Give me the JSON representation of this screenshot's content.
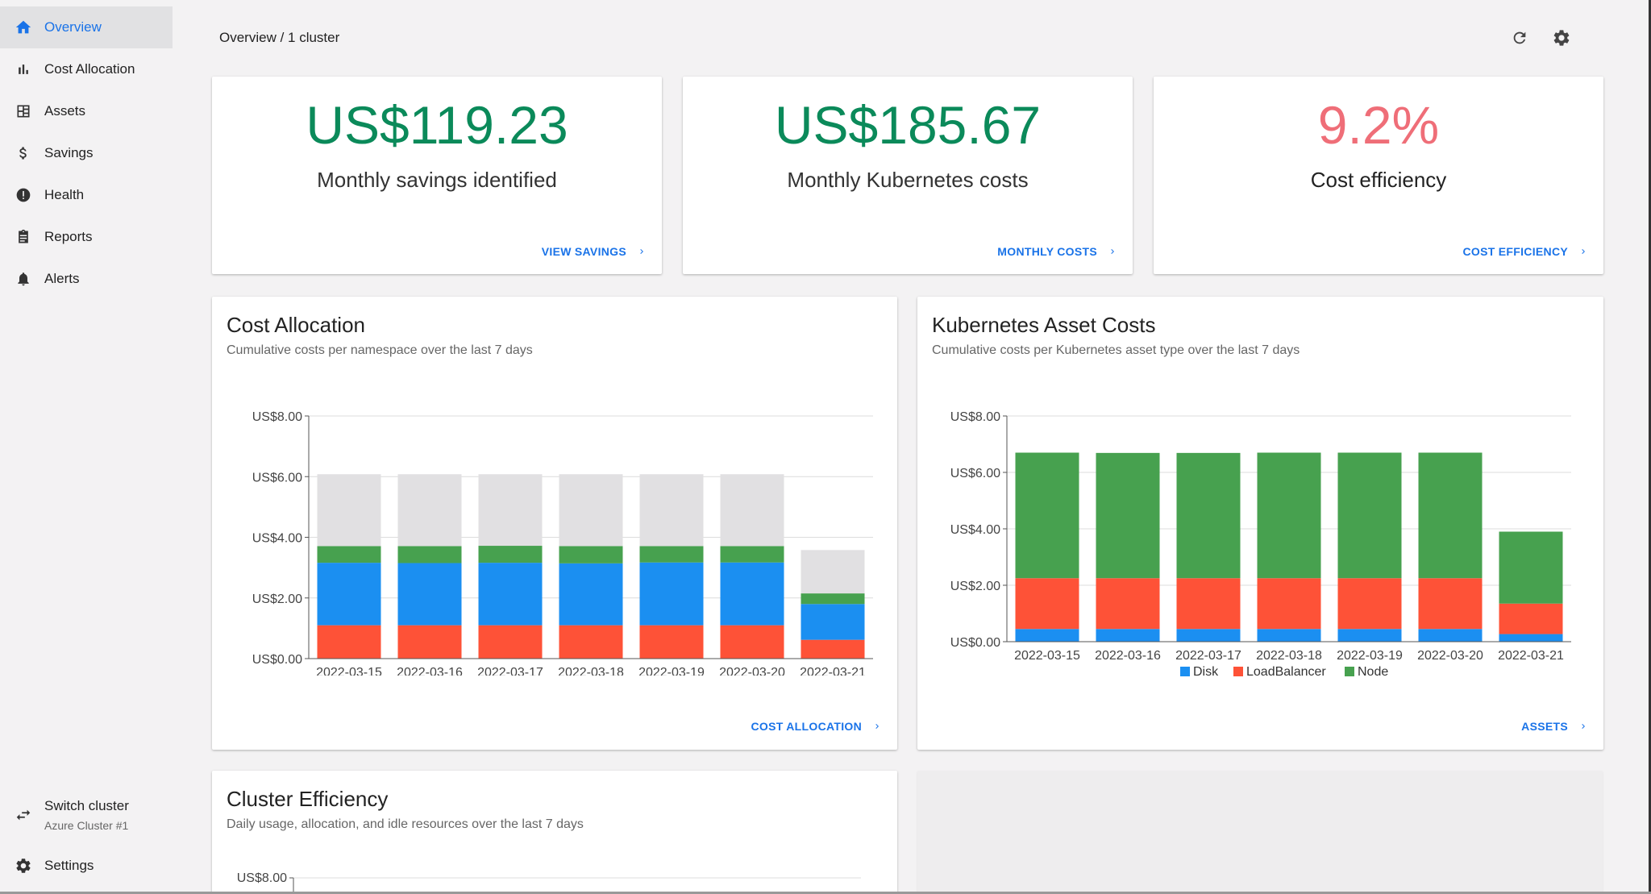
{
  "nav": {
    "items": [
      {
        "label": "Overview",
        "icon": "home-icon",
        "active": true
      },
      {
        "label": "Cost Allocation",
        "icon": "bar-chart-icon"
      },
      {
        "label": "Assets",
        "icon": "grid-icon"
      },
      {
        "label": "Savings",
        "icon": "dollar-icon"
      },
      {
        "label": "Health",
        "icon": "alert-circle-icon"
      },
      {
        "label": "Reports",
        "icon": "clipboard-icon"
      },
      {
        "label": "Alerts",
        "icon": "bell-icon"
      }
    ],
    "switch_cluster": {
      "label": "Switch cluster",
      "cluster": "Azure Cluster #1"
    },
    "settings": {
      "label": "Settings"
    }
  },
  "header": {
    "breadcrumb": "Overview / 1 cluster"
  },
  "stats": [
    {
      "value": "US$119.23",
      "label": "Monthly savings identified",
      "link": "VIEW SAVINGS",
      "color": "#0b8a5a"
    },
    {
      "value": "US$185.67",
      "label": "Monthly Kubernetes costs",
      "link": "MONTHLY COSTS",
      "color": "#0b8a5a"
    },
    {
      "value": "9.2%",
      "label": "Cost efficiency",
      "link": "COST EFFICIENCY",
      "color": "#ef6e78"
    }
  ],
  "cost_allocation": {
    "title": "Cost Allocation",
    "subtitle": "Cumulative costs per namespace over the last 7 days",
    "link": "COST ALLOCATION"
  },
  "asset_costs": {
    "title": "Kubernetes Asset Costs",
    "subtitle": "Cumulative costs per Kubernetes asset type over the last 7 days",
    "link": "ASSETS"
  },
  "cluster_efficiency": {
    "title": "Cluster Efficiency",
    "subtitle": "Daily usage, allocation, and idle resources over the last 7 days",
    "ytick": "US$8.00"
  },
  "colors": {
    "accent": "#1a73e8",
    "red": "#fe5237",
    "blue": "#1b8ff1",
    "green": "#47a14f",
    "grey": "#e1e0e2"
  },
  "chart_data": [
    {
      "type": "bar",
      "stacked": true,
      "categories": [
        "2022-03-15",
        "2022-03-16",
        "2022-03-17",
        "2022-03-18",
        "2022-03-19",
        "2022-03-20",
        "2022-03-21"
      ],
      "ylim": [
        0,
        8
      ],
      "yticks": [
        "US$0.00",
        "US$2.00",
        "US$4.00",
        "US$6.00",
        "US$8.00"
      ],
      "series": [
        {
          "values": [
            1.1,
            1.1,
            1.1,
            1.1,
            1.1,
            1.1,
            0.62
          ],
          "color": "#fe5237"
        },
        {
          "values": [
            2.06,
            2.05,
            2.06,
            2.04,
            2.07,
            2.07,
            1.18
          ],
          "color": "#1b8ff1"
        },
        {
          "values": [
            0.55,
            0.56,
            0.56,
            0.57,
            0.54,
            0.54,
            0.35
          ],
          "color": "#47a14f"
        },
        {
          "values": [
            2.37,
            2.37,
            2.36,
            2.37,
            2.37,
            2.37,
            1.43
          ],
          "color": "#e1e0e2"
        }
      ]
    },
    {
      "type": "bar",
      "stacked": true,
      "categories": [
        "2022-03-15",
        "2022-03-16",
        "2022-03-17",
        "2022-03-18",
        "2022-03-19",
        "2022-03-20",
        "2022-03-21"
      ],
      "ylim": [
        0,
        8
      ],
      "yticks": [
        "US$0.00",
        "US$2.00",
        "US$4.00",
        "US$6.00",
        "US$8.00"
      ],
      "legend": "bottom",
      "series": [
        {
          "name": "Disk",
          "values": [
            0.45,
            0.45,
            0.45,
            0.45,
            0.45,
            0.45,
            0.27
          ],
          "color": "#1b8ff1"
        },
        {
          "name": "LoadBalancer",
          "values": [
            1.8,
            1.8,
            1.8,
            1.8,
            1.8,
            1.8,
            1.08
          ],
          "color": "#fe5237"
        },
        {
          "name": "Node",
          "values": [
            4.45,
            4.44,
            4.44,
            4.45,
            4.45,
            4.45,
            2.55
          ],
          "color": "#47a14f"
        }
      ]
    }
  ]
}
